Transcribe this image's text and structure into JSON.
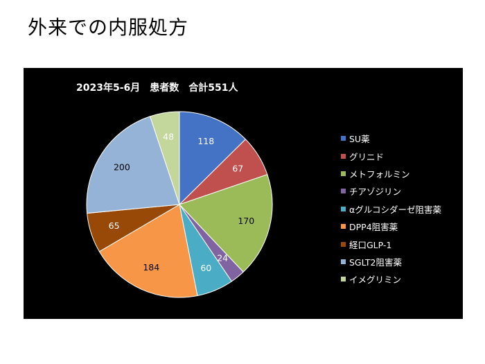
{
  "page": {
    "title": "外来での内服処方"
  },
  "chart_data": {
    "type": "pie",
    "title": "2023年5-6月　患者数　合計551人",
    "categories": [
      "SU薬",
      "グリニド",
      "メトフォルミン",
      "チアゾジリン",
      "αグルコシダーゼ阻害薬",
      "DPP4阻害薬",
      "経口GLP-1",
      "SGLT2阻害薬",
      "イメグリミン"
    ],
    "values": [
      118,
      67,
      170,
      24,
      60,
      184,
      65,
      200,
      48
    ],
    "colors": [
      "#4472C4",
      "#C0504D",
      "#9BBB59",
      "#8064A2",
      "#4BACC6",
      "#F79646",
      "#984807",
      "#95B3D7",
      "#C3D69B"
    ],
    "label_colors": [
      "#ffffff",
      "#ffffff",
      "#000000",
      "#ffffff",
      "#ffffff",
      "#000000",
      "#ffffff",
      "#000000",
      "#ffffff"
    ],
    "legend_position": "right",
    "start_angle": "12 o'clock, clockwise"
  }
}
